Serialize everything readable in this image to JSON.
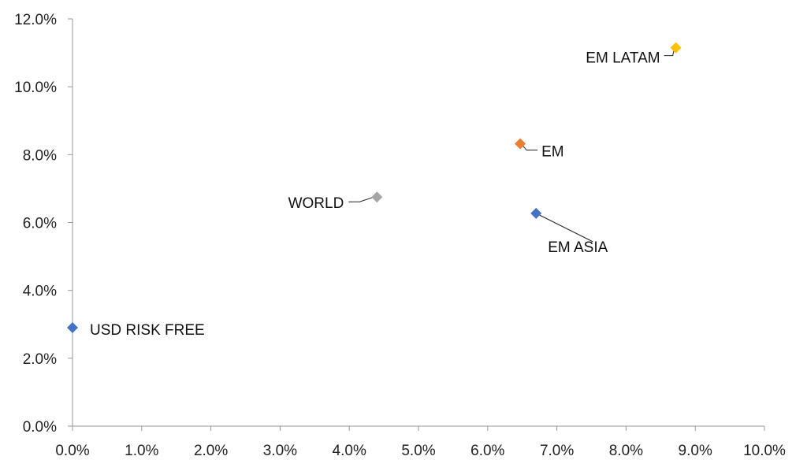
{
  "chart_data": {
    "type": "scatter",
    "title": "",
    "xlabel": "",
    "ylabel": "",
    "xlim": [
      0.0,
      10.0
    ],
    "ylim": [
      0.0,
      12.0
    ],
    "grid": false,
    "legend": "none",
    "x_ticks": [
      "0.0%",
      "1.0%",
      "2.0%",
      "3.0%",
      "4.0%",
      "5.0%",
      "6.0%",
      "7.0%",
      "8.0%",
      "9.0%",
      "10.0%"
    ],
    "y_ticks": [
      "0.0%",
      "2.0%",
      "4.0%",
      "6.0%",
      "8.0%",
      "10.0%",
      "12.0%"
    ],
    "points": [
      {
        "label": "USD RISK FREE",
        "x": 0.0,
        "y": 2.9,
        "color": "#4472C4"
      },
      {
        "label": "WORLD",
        "x": 4.4,
        "y": 6.75,
        "color": "#A5A5A5"
      },
      {
        "label": "EM",
        "x": 6.47,
        "y": 8.32,
        "color": "#ED7D31"
      },
      {
        "label": "EM ASIA",
        "x": 6.7,
        "y": 6.27,
        "color": "#4472C4"
      },
      {
        "label": "EM LATAM",
        "x": 8.72,
        "y": 11.15,
        "color": "#FFC000"
      }
    ]
  }
}
